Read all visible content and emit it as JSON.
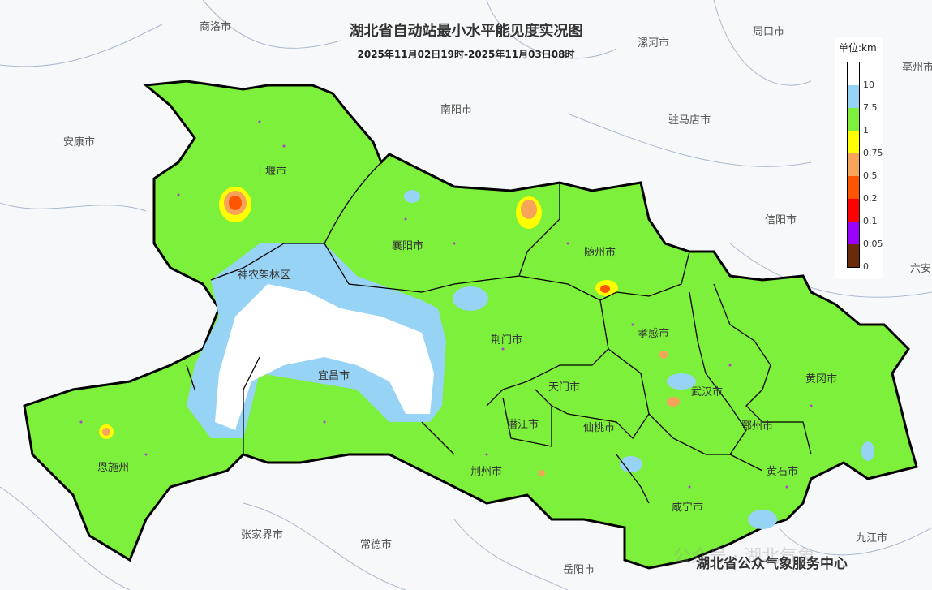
{
  "title": "湖北省自动站最小水平能见度实况图",
  "subtitle": "2025年11月02日19时-2025年11月03日08时",
  "legend": {
    "unit": "单位:km",
    "colors": [
      "#ffffff",
      "#97d3f5",
      "#7cf03a",
      "#ffff00",
      "#f5a45a",
      "#ff5500",
      "#ff0000",
      "#9900ff",
      "#6b2a0a"
    ],
    "ticks": [
      "10",
      "7.5",
      "1",
      "0.75",
      "0.5",
      "0.2",
      "0.1",
      "0.05",
      "0"
    ]
  },
  "cities_in": [
    {
      "name": "十堰市"
    },
    {
      "name": "襄阳市"
    },
    {
      "name": "随州市"
    },
    {
      "name": "神农架林区"
    },
    {
      "name": "荆门市"
    },
    {
      "name": "孝感市"
    },
    {
      "name": "宜昌市"
    },
    {
      "name": "天门市"
    },
    {
      "name": "武汉市"
    },
    {
      "name": "黄冈市"
    },
    {
      "name": "潜江市"
    },
    {
      "name": "仙桃市"
    },
    {
      "name": "鄂州市"
    },
    {
      "name": "恩施州"
    },
    {
      "name": "荆州市"
    },
    {
      "name": "黄石市"
    },
    {
      "name": "咸宁市"
    }
  ],
  "cities_out": [
    {
      "name": "商洛市"
    },
    {
      "name": "漯河市"
    },
    {
      "name": "周口市"
    },
    {
      "name": "南阳市"
    },
    {
      "name": "驻马店市"
    },
    {
      "name": "亳州市"
    },
    {
      "name": "安康市"
    },
    {
      "name": "信阳市"
    },
    {
      "name": "六安"
    },
    {
      "name": "张家界市"
    },
    {
      "name": "常德市"
    },
    {
      "name": "岳阳市"
    },
    {
      "name": "九江市"
    }
  ],
  "footer": "湖北省公众气象服务中心",
  "watermark": "公众号 · 湖北气象"
}
